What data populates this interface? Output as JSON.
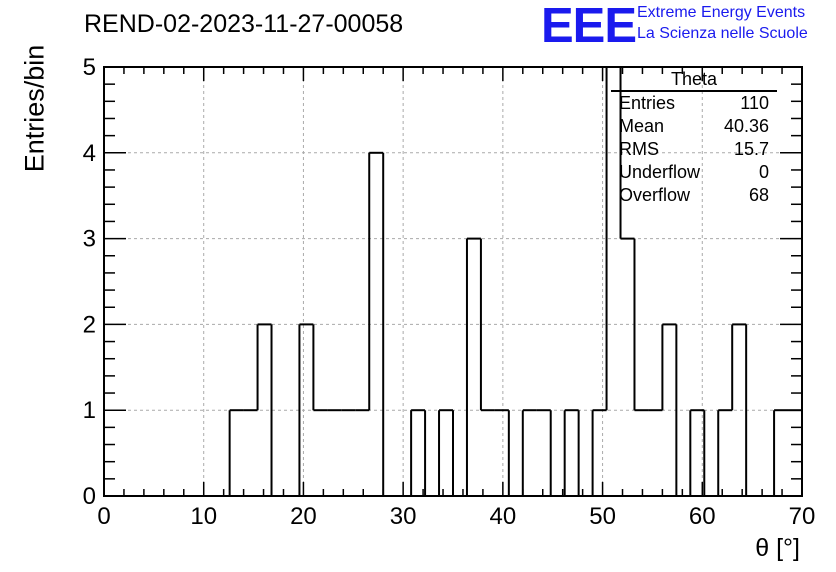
{
  "chart_data": {
    "type": "bar",
    "title": "REND-02-2023-11-27-00058",
    "xlabel": "θ [°]",
    "ylabel": "Entries/bin",
    "xlim": [
      0,
      70
    ],
    "ylim": [
      0,
      5
    ],
    "xticks": [
      "0",
      "10",
      "20",
      "30",
      "40",
      "50",
      "60",
      "70"
    ],
    "yticks": [
      "0",
      "1",
      "2",
      "3",
      "4",
      "5"
    ],
    "grid": true,
    "bin_width": 1.4,
    "values": [
      0,
      0,
      0,
      0,
      0,
      0,
      0,
      0,
      0,
      1,
      1,
      2,
      0,
      0,
      2,
      1,
      1,
      1,
      1,
      4,
      0,
      0,
      1,
      0,
      1,
      0,
      3,
      1,
      1,
      0,
      1,
      1,
      0,
      1,
      0,
      1,
      5,
      3,
      1,
      1,
      2,
      0,
      1,
      0,
      1,
      2,
      0,
      0,
      1,
      1
    ],
    "stats": {
      "name": "Theta",
      "rows": [
        {
          "label": "Entries",
          "value": "110"
        },
        {
          "label": "Mean",
          "value": "40.36"
        },
        {
          "label": "RMS",
          "value": "15.7"
        },
        {
          "label": "Underflow",
          "value": "0"
        },
        {
          "label": "Overflow",
          "value": "68"
        }
      ]
    }
  },
  "logo": {
    "mark": "EEE",
    "line1": "Extreme Energy Events",
    "line2": "La Scienza nelle Scuole"
  }
}
